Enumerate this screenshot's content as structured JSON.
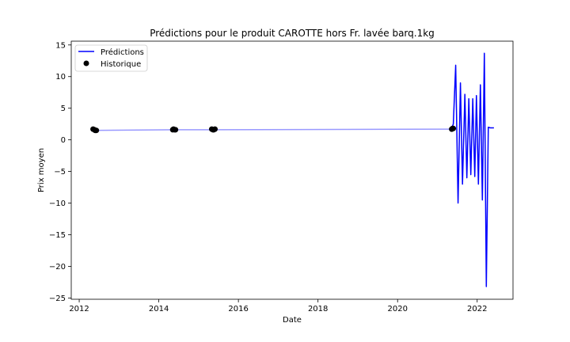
{
  "chart_data": {
    "type": "line",
    "title": "Prédictions pour le produit CAROTTE hors Fr. lavée barq.1kg",
    "xlabel": "Date",
    "ylabel": "Prix moyen",
    "xlim": [
      2011.8,
      2022.9
    ],
    "ylim": [
      -25.2,
      15.6
    ],
    "x_ticks": [
      2012,
      2014,
      2016,
      2018,
      2020,
      2022
    ],
    "x_tick_labels": [
      "2012",
      "2014",
      "2016",
      "2018",
      "2020",
      "2022"
    ],
    "y_ticks": [
      15,
      10,
      5,
      0,
      -5,
      -10,
      -15,
      -20,
      -25
    ],
    "y_tick_labels": [
      "15",
      "10",
      "5",
      "0",
      "−5",
      "−10",
      "−15",
      "−20",
      "−25"
    ],
    "grid": false,
    "legend": {
      "placement": "top-left",
      "entries": [
        "Prédictions",
        "Historique"
      ]
    },
    "colors": {
      "predictions": "#0000ff",
      "historique": "#000000",
      "faded_line": "#9999ff"
    },
    "series": [
      {
        "name": "Prédictions",
        "style": "line",
        "x": [
          2012.35,
          2014.4,
          2015.35,
          2021.35,
          2021.4,
          2021.46,
          2021.52,
          2021.58,
          2021.63,
          2021.69,
          2021.74,
          2021.79,
          2021.84,
          2021.89,
          2021.94,
          2021.98,
          2022.03,
          2022.08,
          2022.13,
          2022.18,
          2022.23,
          2022.28,
          2022.33,
          2022.37,
          2022.42
        ],
        "y": [
          1.5,
          1.6,
          1.6,
          1.7,
          2.5,
          11.8,
          -10.0,
          9.0,
          -7.0,
          7.2,
          -6.0,
          6.5,
          -5.5,
          6.5,
          -5.8,
          7.0,
          -7.0,
          8.7,
          -9.5,
          13.7,
          -23.2,
          2.0,
          1.9,
          1.9,
          1.9
        ]
      },
      {
        "name": "Historique",
        "style": "scatter",
        "x": [
          2012.35,
          2012.38,
          2012.4,
          2012.43,
          2014.35,
          2014.37,
          2014.4,
          2014.42,
          2015.33,
          2015.36,
          2015.38,
          2015.41,
          2021.36,
          2021.38,
          2021.4
        ],
        "y": [
          1.7,
          1.6,
          1.5,
          1.5,
          1.6,
          1.7,
          1.6,
          1.6,
          1.7,
          1.6,
          1.6,
          1.7,
          1.7,
          1.8,
          1.8
        ]
      }
    ]
  }
}
